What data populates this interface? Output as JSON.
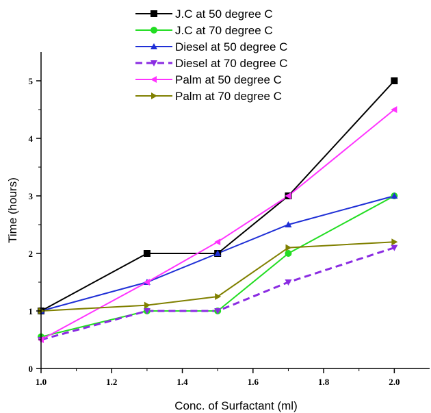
{
  "chart_data": {
    "type": "line",
    "title": "",
    "xlabel": "Conc. of Surfactant (ml)",
    "ylabel": "Time (hours)",
    "xlim": [
      1.0,
      2.1
    ],
    "ylim": [
      0,
      5.5
    ],
    "xticks": [
      "1.0",
      "1.2",
      "1.4",
      "1.6",
      "1.8",
      "2.0"
    ],
    "yticks": [
      "0",
      "1",
      "2",
      "3",
      "4",
      "5"
    ],
    "grid": false,
    "legend_position": "top-center",
    "series": [
      {
        "name": "J.C at 50 degree C",
        "color": "#000000",
        "marker": "square",
        "dashed": false,
        "x": [
          1.0,
          1.3,
          1.5,
          1.7,
          2.0
        ],
        "y": [
          1.0,
          2.0,
          2.0,
          3.0,
          5.0
        ]
      },
      {
        "name": "J.C at 70 degree C",
        "color": "#22dd22",
        "marker": "circle",
        "dashed": false,
        "x": [
          1.0,
          1.3,
          1.5,
          1.7,
          2.0
        ],
        "y": [
          0.55,
          1.0,
          1.0,
          2.0,
          3.0
        ]
      },
      {
        "name": "Diesel at 50 degree C",
        "color": "#1f2fd6",
        "marker": "triangle-up",
        "dashed": false,
        "x": [
          1.0,
          1.3,
          1.5,
          1.7,
          2.0
        ],
        "y": [
          1.0,
          1.5,
          2.0,
          2.5,
          3.0
        ]
      },
      {
        "name": "Diesel at 70 degree C",
        "color": "#8a2be2",
        "marker": "triangle-down",
        "dashed": true,
        "x": [
          1.0,
          1.3,
          1.5,
          1.7,
          2.0
        ],
        "y": [
          0.5,
          1.0,
          1.0,
          1.5,
          2.1
        ]
      },
      {
        "name": "Palm at 50 degree C",
        "color": "#ff33ff",
        "marker": "triangle-left",
        "dashed": false,
        "x": [
          1.0,
          1.3,
          1.5,
          1.7,
          2.0
        ],
        "y": [
          0.5,
          1.5,
          2.2,
          3.0,
          4.5
        ]
      },
      {
        "name": "Palm at 70 degree C",
        "color": "#808000",
        "marker": "triangle-right",
        "dashed": false,
        "x": [
          1.0,
          1.3,
          1.5,
          1.7,
          2.0
        ],
        "y": [
          1.0,
          1.1,
          1.25,
          2.1,
          2.2
        ]
      }
    ]
  }
}
